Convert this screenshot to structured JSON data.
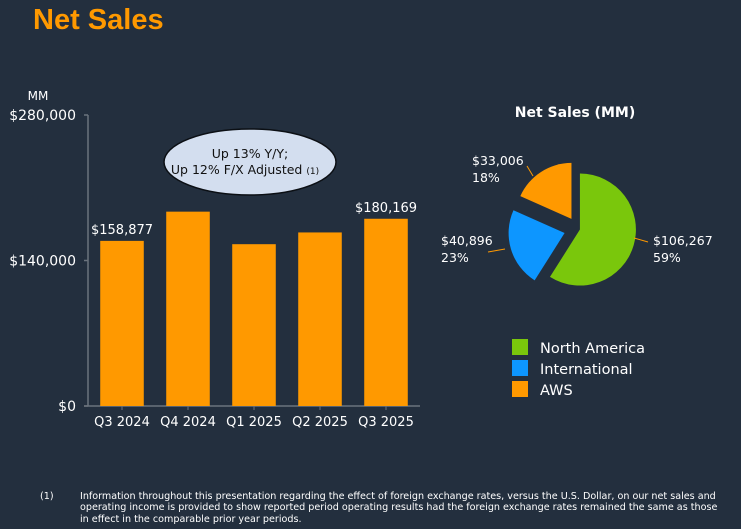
{
  "page": {
    "title": "Net Sales"
  },
  "callout": {
    "line1": "Up 13% Y/Y;",
    "line2": "Up 12% F/X Adjusted",
    "footnote_ref": "(1)"
  },
  "footnote": {
    "marker": "(1)",
    "text": "Information throughout this presentation regarding the effect of foreign exchange rates, versus the U.S. Dollar, on our net sales and operating income is provided to show reported period operating results had the foreign exchange rates remained the same as those in effect in the comparable prior year periods."
  },
  "colors": {
    "background": "#232f3e",
    "accent": "#ff9900",
    "north_america": "#7ac70c",
    "international": "#0d96ff",
    "aws": "#ff9900",
    "callout_fill": "#d3deef"
  },
  "chart_data": [
    {
      "type": "bar",
      "title": "",
      "unit_label": "MM",
      "xlabel": "",
      "ylabel": "",
      "ylim": [
        0,
        280000
      ],
      "yticks": [
        0,
        140000,
        280000
      ],
      "ytick_labels": [
        "$0",
        "$140,000",
        "$280,000"
      ],
      "grid": false,
      "categories": [
        "Q3 2024",
        "Q4 2024",
        "Q1 2025",
        "Q2 2025",
        "Q3 2025"
      ],
      "values": [
        158877,
        187000,
        155700,
        167000,
        180169
      ],
      "data_labels": [
        "$158,877",
        "",
        "",
        "",
        "$180,169"
      ],
      "color": "#ff9900"
    },
    {
      "type": "pie",
      "title": "Net Sales (MM)",
      "legend_position": "bottom",
      "slices": [
        {
          "name": "North America",
          "value": 106267,
          "label": "$106,267",
          "percent_label": "59%",
          "color": "#7ac70c"
        },
        {
          "name": "International",
          "value": 40896,
          "label": "$40,896",
          "percent_label": "23%",
          "color": "#0d96ff"
        },
        {
          "name": "AWS",
          "value": 33006,
          "label": "$33,006",
          "percent_label": "18%",
          "color": "#ff9900"
        }
      ]
    }
  ]
}
